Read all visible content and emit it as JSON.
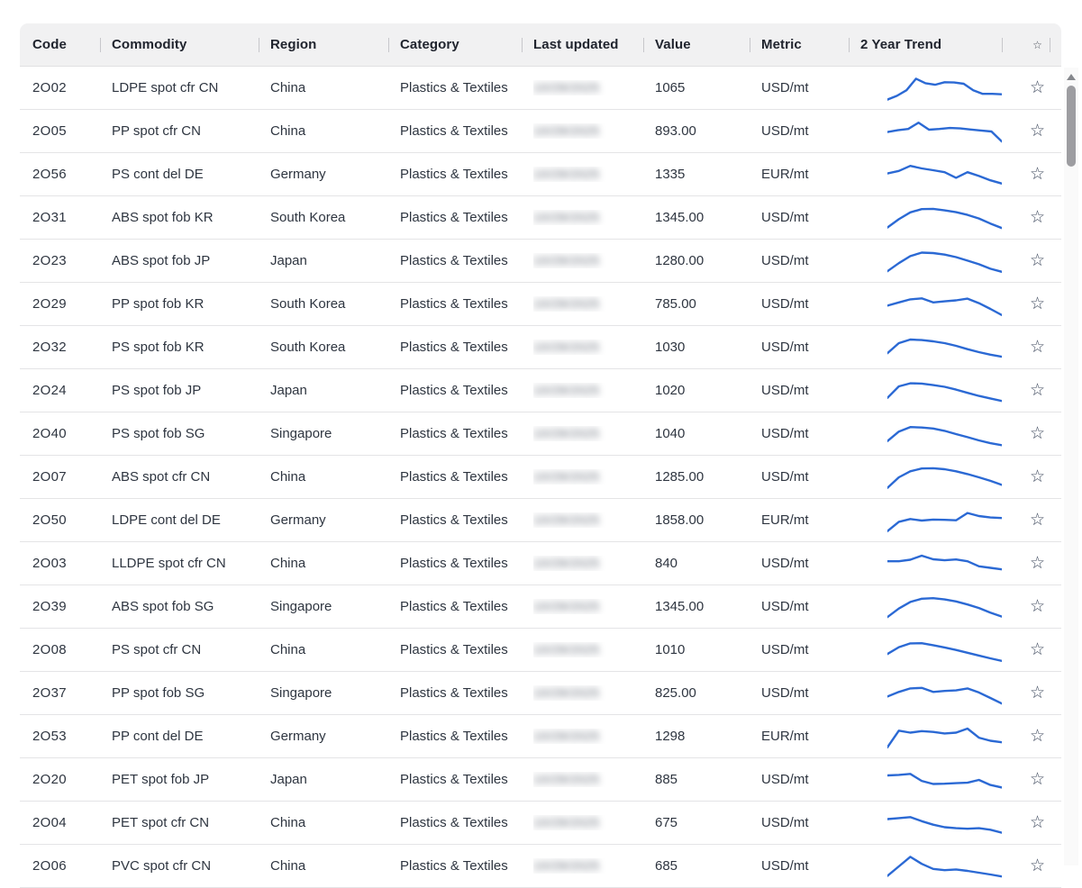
{
  "colors": {
    "sparkline_blue": "#2b69d4",
    "header_bg": "#f1f1f2",
    "row_border": "#e4e4e6",
    "text": "#2e3540",
    "header_text": "#20242e",
    "star": "#3f4a5e",
    "scrollbar_thumb": "#9d9da1"
  },
  "header": {
    "columns": [
      "Code",
      "Commodity",
      "Region",
      "Category",
      "Last updated",
      "Value",
      "Metric",
      "2 Year Trend"
    ]
  },
  "icons": {
    "star_outline": "☆",
    "star_header": "☆",
    "scroll_up_arrow": "▲"
  },
  "last_updated_masked_text": "10/29/2025",
  "rows": [
    {
      "code": "2O02",
      "commodity": "LDPE spot cfr CN",
      "region": "China",
      "category": "Plastics & Textiles",
      "value": "1065",
      "metric": "USD/mt",
      "trend": [
        5,
        20,
        42,
        88,
        70,
        64,
        74,
        73,
        68,
        42,
        28,
        28,
        26
      ]
    },
    {
      "code": "2O05",
      "commodity": "PP spot cfr CN",
      "region": "China",
      "category": "Plastics & Textiles",
      "value": "893.00",
      "metric": "USD/mt",
      "trend": [
        48,
        55,
        60,
        85,
        57,
        60,
        64,
        62,
        58,
        54,
        50,
        10
      ]
    },
    {
      "code": "2O56",
      "commodity": "PS cont del DE",
      "region": "Germany",
      "category": "Plastics & Textiles",
      "value": "1335",
      "metric": "EUR/mt",
      "trend": [
        55,
        65,
        85,
        75,
        68,
        60,
        38,
        60,
        45,
        28,
        15
      ]
    },
    {
      "code": "2O31",
      "commodity": "ABS spot fob KR",
      "region": "South Korea",
      "category": "Plastics & Textiles",
      "value": "1345.00",
      "metric": "USD/mt",
      "trend": [
        12,
        45,
        72,
        85,
        86,
        80,
        73,
        62,
        48,
        28,
        10
      ]
    },
    {
      "code": "2O23",
      "commodity": "ABS spot fob JP",
      "region": "Japan",
      "category": "Plastics & Textiles",
      "value": "1280.00",
      "metric": "USD/mt",
      "trend": [
        10,
        42,
        70,
        84,
        82,
        76,
        66,
        52,
        38,
        20,
        8
      ]
    },
    {
      "code": "2O29",
      "commodity": "PP spot fob KR",
      "region": "South Korea",
      "category": "Plastics & Textiles",
      "value": "785.00",
      "metric": "USD/mt",
      "trend": [
        45,
        58,
        70,
        74,
        58,
        62,
        66,
        73,
        55,
        32,
        8
      ]
    },
    {
      "code": "2O32",
      "commodity": "PS spot fob KR",
      "region": "South Korea",
      "category": "Plastics & Textiles",
      "value": "1030",
      "metric": "USD/mt",
      "trend": [
        28,
        68,
        82,
        80,
        75,
        68,
        57,
        44,
        32,
        22,
        14
      ]
    },
    {
      "code": "2O24",
      "commodity": "PS spot fob JP",
      "region": "Japan",
      "category": "Plastics & Textiles",
      "value": "1020",
      "metric": "USD/mt",
      "trend": [
        22,
        68,
        80,
        79,
        73,
        66,
        55,
        42,
        30,
        20,
        10
      ]
    },
    {
      "code": "2O40",
      "commodity": "PS spot fob SG",
      "region": "Singapore",
      "category": "Plastics & Textiles",
      "value": "1040",
      "metric": "USD/mt",
      "trend": [
        22,
        60,
        78,
        76,
        72,
        63,
        50,
        38,
        25,
        14,
        6
      ]
    },
    {
      "code": "2O07",
      "commodity": "ABS spot cfr CN",
      "region": "China",
      "category": "Plastics & Textiles",
      "value": "1285.00",
      "metric": "USD/mt",
      "trend": [
        8,
        50,
        74,
        85,
        86,
        82,
        74,
        63,
        50,
        36,
        20
      ]
    },
    {
      "code": "2O50",
      "commodity": "LDPE cont del DE",
      "region": "Germany",
      "category": "Plastics & Textiles",
      "value": "1858.00",
      "metric": "EUR/mt",
      "trend": [
        8,
        45,
        56,
        50,
        54,
        53,
        51,
        80,
        68,
        62,
        60
      ]
    },
    {
      "code": "2O03",
      "commodity": "LLDPE spot cfr CN",
      "region": "China",
      "category": "Plastics & Textiles",
      "value": "840",
      "metric": "USD/mt",
      "trend": [
        60,
        60,
        66,
        82,
        68,
        64,
        67,
        60,
        40,
        34,
        28
      ]
    },
    {
      "code": "2O39",
      "commodity": "ABS spot fob SG",
      "region": "Singapore",
      "category": "Plastics & Textiles",
      "value": "1345.00",
      "metric": "USD/mt",
      "trend": [
        10,
        44,
        70,
        83,
        85,
        80,
        72,
        60,
        46,
        28,
        12
      ]
    },
    {
      "code": "2O08",
      "commodity": "PS spot cfr CN",
      "region": "China",
      "category": "Plastics & Textiles",
      "value": "1010",
      "metric": "USD/mt",
      "trend": [
        35,
        62,
        77,
        78,
        70,
        61,
        51,
        40,
        29,
        18,
        8
      ]
    },
    {
      "code": "2O37",
      "commodity": "PP spot fob SG",
      "region": "Singapore",
      "category": "Plastics & Textiles",
      "value": "825.00",
      "metric": "USD/mt",
      "trend": [
        38,
        56,
        70,
        72,
        56,
        60,
        62,
        70,
        54,
        32,
        10
      ]
    },
    {
      "code": "2O53",
      "commodity": "PP cont del DE",
      "region": "Germany",
      "category": "Plastics & Textiles",
      "value": "1298",
      "metric": "EUR/mt",
      "trend": [
        8,
        74,
        66,
        72,
        69,
        63,
        66,
        82,
        46,
        34,
        28
      ]
    },
    {
      "code": "2O20",
      "commodity": "PET spot fob JP",
      "region": "Japan",
      "category": "Plastics & Textiles",
      "value": "885",
      "metric": "USD/mt",
      "trend": [
        68,
        70,
        74,
        46,
        34,
        35,
        37,
        39,
        50,
        30,
        20
      ]
    },
    {
      "code": "2O04",
      "commodity": "PET spot cfr CN",
      "region": "China",
      "category": "Plastics & Textiles",
      "value": "675",
      "metric": "USD/mt",
      "trend": [
        66,
        70,
        74,
        58,
        44,
        34,
        30,
        28,
        30,
        24,
        12
      ]
    },
    {
      "code": "2O06",
      "commodity": "PVC spot cfr CN",
      "region": "China",
      "category": "Plastics & Textiles",
      "value": "685",
      "metric": "USD/mt",
      "trend": [
        12,
        50,
        88,
        60,
        40,
        35,
        38,
        32,
        25,
        18,
        10
      ]
    }
  ]
}
